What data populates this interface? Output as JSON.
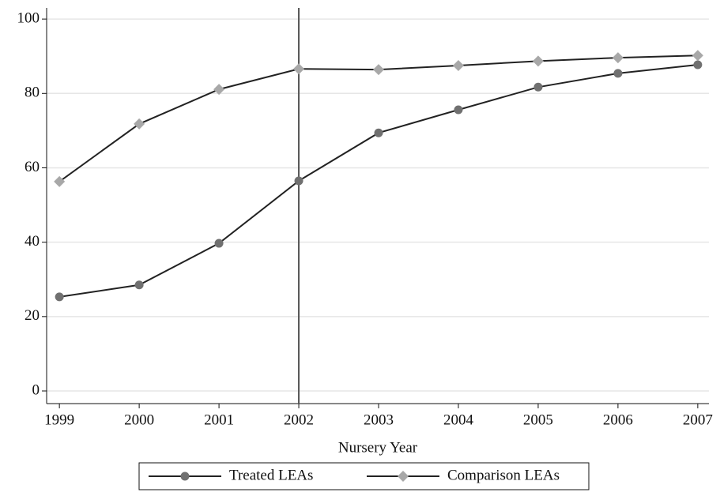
{
  "chart_data": {
    "type": "line",
    "x_label": "Nursery Year",
    "x": [
      1999,
      2000,
      2001,
      2002,
      2003,
      2004,
      2005,
      2006,
      2007
    ],
    "series": [
      {
        "name": "Treated LEAs",
        "color": "#707070",
        "marker": "circle",
        "values": [
          25.3,
          28.5,
          39.7,
          56.5,
          69.4,
          75.6,
          81.7,
          85.4,
          87.7
        ]
      },
      {
        "name": "Comparison LEAs",
        "color": "#a8a8a8",
        "marker": "diamond",
        "values": [
          56.3,
          71.8,
          81.1,
          86.6,
          86.4,
          87.5,
          88.7,
          89.6,
          90.2
        ]
      }
    ],
    "line_color": "#222222",
    "vline": 2002,
    "xlim": [
      1998.84,
      2007.14
    ],
    "xticks": [
      1999,
      2000,
      2001,
      2002,
      2003,
      2004,
      2005,
      2006,
      2007
    ],
    "ylim": [
      -3.4,
      103
    ],
    "yticks": [
      0,
      20,
      40,
      60,
      80,
      100
    ],
    "grid": true,
    "legend": "bottom"
  }
}
